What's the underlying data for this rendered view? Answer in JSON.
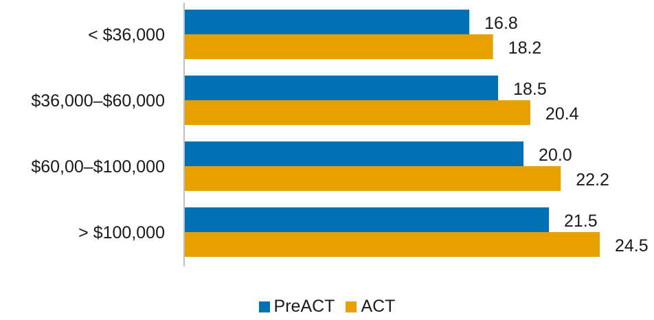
{
  "chart_data": {
    "type": "bar",
    "orientation": "horizontal",
    "categories": [
      "< $36,000",
      "$36,000–$60,000",
      "$60,00–$100,000",
      "> $100,000"
    ],
    "series": [
      {
        "name": "PreACT",
        "color": "#0071B3",
        "values": [
          16.8,
          18.5,
          20.0,
          21.5
        ]
      },
      {
        "name": "ACT",
        "color": "#E8A000",
        "values": [
          18.2,
          20.4,
          22.2,
          24.5
        ]
      }
    ],
    "value_labels": [
      [
        "16.8",
        "18.5",
        "20.0",
        "21.5"
      ],
      [
        "18.2",
        "20.4",
        "22.2",
        "24.5"
      ]
    ],
    "xlim": [
      0,
      24.5
    ],
    "grid": false,
    "legend_position": "bottom"
  }
}
